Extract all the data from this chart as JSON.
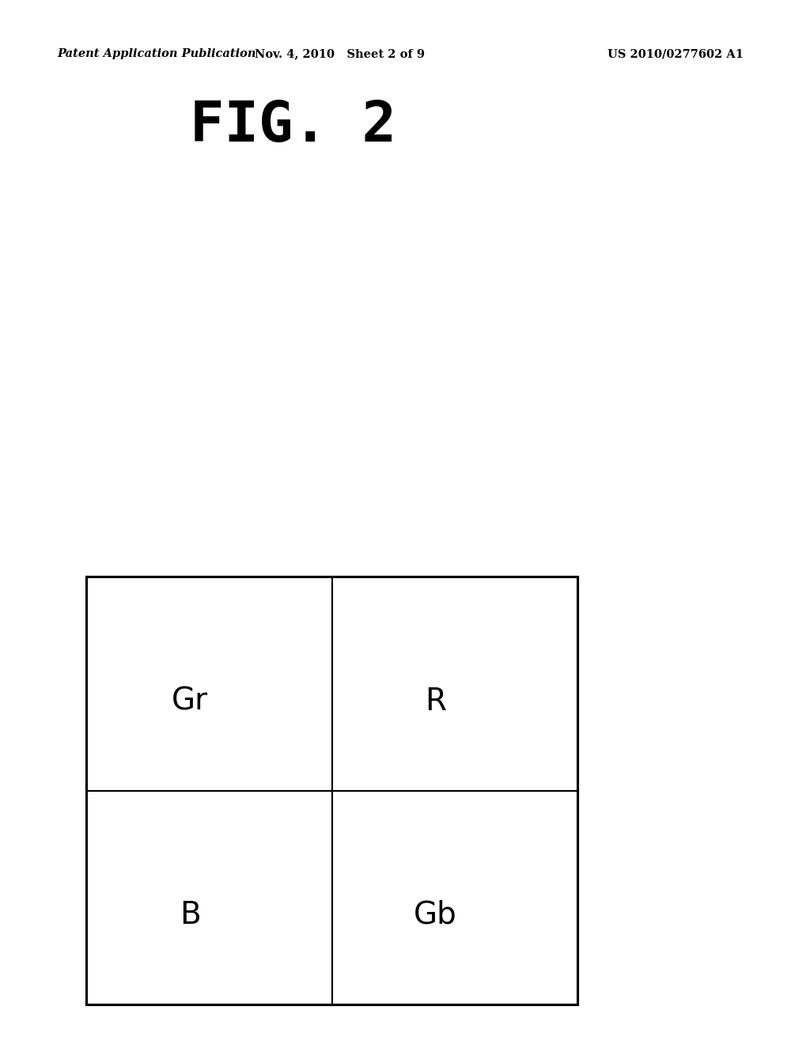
{
  "background_color": "#ffffff",
  "header_left": "Patent Application Publication",
  "header_center": "Nov. 4, 2010   Sheet 2 of 9",
  "header_right": "US 2010/0277602 A1",
  "title": "FIG. 2",
  "cells": [
    {
      "label": "Gr",
      "col": 0,
      "row": 1
    },
    {
      "label": "R",
      "col": 1,
      "row": 1
    },
    {
      "label": "B",
      "col": 0,
      "row": 0
    },
    {
      "label": "Gb",
      "col": 1,
      "row": 0
    }
  ],
  "line_color": "#000000"
}
